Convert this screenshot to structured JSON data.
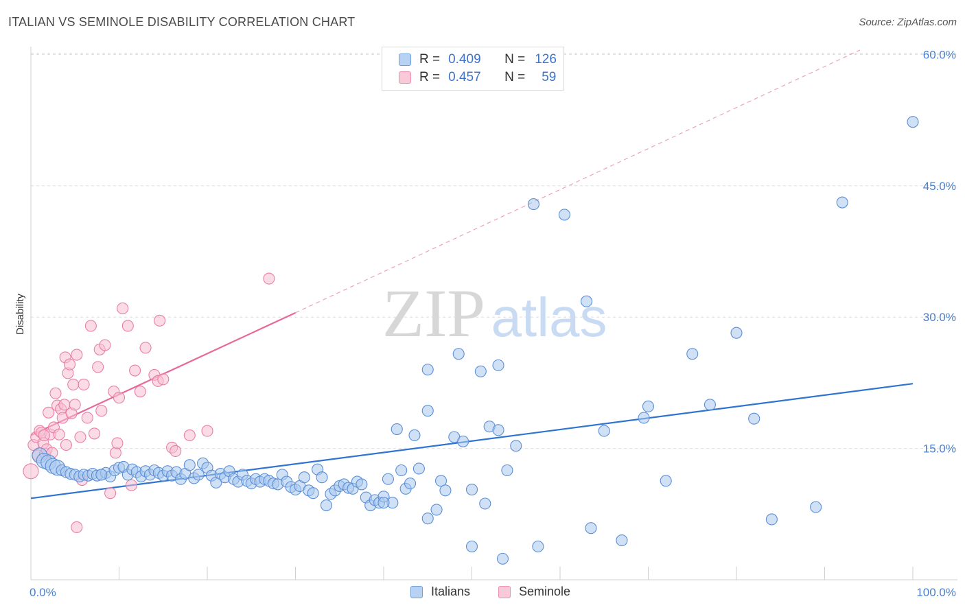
{
  "title": "ITALIAN VS SEMINOLE DISABILITY CORRELATION CHART",
  "source": "Source: ZipAtlas.com",
  "watermark": {
    "zip": "ZIP",
    "atlas": "atlas"
  },
  "legend_top": [
    {
      "r_label": "R =",
      "r_value": "0.409",
      "n_label": "N =",
      "n_value": "126"
    },
    {
      "r_label": "R =",
      "r_value": "0.457",
      "n_label": "N =",
      "n_value": "59"
    }
  ],
  "legend_bottom": [
    "Italians",
    "Seminole"
  ],
  "colors": {
    "italians_fill": "#a9c8ef",
    "italians_stroke": "#5b8fd6",
    "italians_line": "#2f74d0",
    "seminole_fill": "#f7bfd1",
    "seminole_stroke": "#e97ea5",
    "seminole_line": "#e8689a",
    "tick_label": "#4a7fc9",
    "grid": "#dddddd"
  },
  "chart_data": {
    "type": "scatter",
    "title": "ITALIAN VS SEMINOLE DISABILITY CORRELATION CHART",
    "xlabel": "",
    "ylabel": "Disability",
    "xlim": [
      0,
      100
    ],
    "ylim": [
      0,
      60
    ],
    "x_tick_labels": [
      "0.0%",
      "100.0%"
    ],
    "y_ticks": [
      15,
      30,
      45,
      60
    ],
    "y_tick_labels": [
      "15.0%",
      "30.0%",
      "45.0%",
      "60.0%"
    ],
    "grid": true,
    "legend_position": "bottom",
    "series": [
      {
        "name": "Italians",
        "r": 0.409,
        "n": 126,
        "trend": {
          "x": [
            0,
            100
          ],
          "y": [
            9.3,
            22.4
          ],
          "solid": true
        },
        "points": [
          [
            1,
            14.2
          ],
          [
            1.5,
            13.6
          ],
          [
            2,
            13.4
          ],
          [
            2.5,
            13.0
          ],
          [
            3,
            12.8
          ],
          [
            3.5,
            12.5
          ],
          [
            4,
            12.3
          ],
          [
            4.5,
            12.1
          ],
          [
            5,
            12.0
          ],
          [
            5.5,
            11.8
          ],
          [
            6,
            12.0
          ],
          [
            6.5,
            11.9
          ],
          [
            7,
            12.1
          ],
          [
            7.5,
            11.9
          ],
          [
            8,
            12.0
          ],
          [
            8.5,
            12.2
          ],
          [
            9,
            11.8
          ],
          [
            9.5,
            12.5
          ],
          [
            10,
            12.8
          ],
          [
            10.5,
            12.9
          ],
          [
            11,
            12.0
          ],
          [
            11.5,
            12.6
          ],
          [
            12,
            12.3
          ],
          [
            12.5,
            11.8
          ],
          [
            13,
            12.4
          ],
          [
            13.5,
            12.0
          ],
          [
            14,
            12.5
          ],
          [
            14.5,
            12.2
          ],
          [
            15,
            11.9
          ],
          [
            15.5,
            12.4
          ],
          [
            16,
            11.9
          ],
          [
            16.5,
            12.3
          ],
          [
            17,
            11.5
          ],
          [
            17.5,
            12.1
          ],
          [
            18,
            13.1
          ],
          [
            18.5,
            11.6
          ],
          [
            19,
            12.0
          ],
          [
            19.5,
            13.3
          ],
          [
            20,
            12.8
          ],
          [
            20.5,
            11.9
          ],
          [
            21,
            11.1
          ],
          [
            21.5,
            12.1
          ],
          [
            22,
            11.7
          ],
          [
            22.5,
            12.4
          ],
          [
            23,
            11.5
          ],
          [
            23.5,
            11.2
          ],
          [
            24,
            12.0
          ],
          [
            24.5,
            11.3
          ],
          [
            25,
            11.0
          ],
          [
            25.5,
            11.5
          ],
          [
            26,
            11.2
          ],
          [
            26.5,
            11.5
          ],
          [
            27,
            11.3
          ],
          [
            27.5,
            11.0
          ],
          [
            28,
            10.9
          ],
          [
            28.5,
            12.0
          ],
          [
            29,
            11.2
          ],
          [
            29.5,
            10.6
          ],
          [
            30,
            10.3
          ],
          [
            30.5,
            10.7
          ],
          [
            31,
            11.7
          ],
          [
            31.5,
            10.2
          ],
          [
            32,
            9.9
          ],
          [
            32.5,
            12.6
          ],
          [
            33,
            11.7
          ],
          [
            33.5,
            8.5
          ],
          [
            34,
            9.8
          ],
          [
            34.5,
            10.2
          ],
          [
            35,
            10.7
          ],
          [
            35.5,
            10.9
          ],
          [
            36,
            10.5
          ],
          [
            36.5,
            10.4
          ],
          [
            37,
            11.2
          ],
          [
            37.5,
            10.9
          ],
          [
            38,
            9.4
          ],
          [
            38.5,
            8.5
          ],
          [
            39,
            9.1
          ],
          [
            39.5,
            8.8
          ],
          [
            40,
            9.5
          ],
          [
            40.5,
            11.5
          ],
          [
            41,
            8.8
          ],
          [
            41.5,
            17.2
          ],
          [
            42,
            12.5
          ],
          [
            42.5,
            10.4
          ],
          [
            43,
            11.0
          ],
          [
            43.5,
            16.5
          ],
          [
            44,
            12.7
          ],
          [
            45,
            19.3
          ],
          [
            45,
            24.0
          ],
          [
            46,
            8.0
          ],
          [
            46.5,
            11.3
          ],
          [
            47,
            10.2
          ],
          [
            48,
            16.3
          ],
          [
            48.5,
            25.8
          ],
          [
            49,
            15.8
          ],
          [
            50,
            10.3
          ],
          [
            51,
            23.8
          ],
          [
            51.5,
            8.7
          ],
          [
            52,
            17.5
          ],
          [
            53,
            24.5
          ],
          [
            53,
            17.1
          ],
          [
            54,
            12.5
          ],
          [
            55,
            15.3
          ],
          [
            57,
            42.9
          ],
          [
            57.5,
            3.8
          ],
          [
            60.5,
            41.7
          ],
          [
            63,
            31.8
          ],
          [
            63.5,
            5.9
          ],
          [
            65,
            17.0
          ],
          [
            67,
            4.5
          ],
          [
            69.5,
            18.5
          ],
          [
            70,
            19.8
          ],
          [
            72,
            11.3
          ],
          [
            75,
            25.8
          ],
          [
            77,
            20.0
          ],
          [
            80,
            28.2
          ],
          [
            82,
            18.4
          ],
          [
            84,
            6.9
          ],
          [
            89,
            8.3
          ],
          [
            92,
            43.1
          ],
          [
            100,
            52.3
          ],
          [
            45,
            7.0
          ],
          [
            53.5,
            2.4
          ],
          [
            50,
            3.8
          ],
          [
            40,
            8.8
          ],
          [
            8,
            12.0
          ]
        ]
      },
      {
        "name": "Seminole",
        "r": 0.457,
        "n": 59,
        "trend": {
          "x": [
            0,
            30
          ],
          "y": [
            16.5,
            30.5
          ],
          "solid": true,
          "extension": {
            "x": [
              30,
              94
            ],
            "y": [
              30.5,
              60.5
            ],
            "dashed": true
          }
        },
        "points": [
          [
            0,
            12.4
          ],
          [
            0.3,
            15.4
          ],
          [
            0.6,
            16.3
          ],
          [
            0.8,
            14.2
          ],
          [
            1,
            17.0
          ],
          [
            1.2,
            16.8
          ],
          [
            1.4,
            15.6
          ],
          [
            1.6,
            14.4
          ],
          [
            1.8,
            14.9
          ],
          [
            2,
            19.1
          ],
          [
            2.2,
            16.6
          ],
          [
            2.4,
            14.5
          ],
          [
            2.6,
            17.4
          ],
          [
            2.8,
            21.3
          ],
          [
            3,
            19.9
          ],
          [
            3.2,
            16.6
          ],
          [
            3.4,
            19.5
          ],
          [
            3.6,
            18.5
          ],
          [
            3.8,
            20.0
          ],
          [
            3.9,
            25.4
          ],
          [
            4,
            15.4
          ],
          [
            4.2,
            23.6
          ],
          [
            4.4,
            24.6
          ],
          [
            4.6,
            19.0
          ],
          [
            4.8,
            22.3
          ],
          [
            5,
            20.0
          ],
          [
            5.2,
            25.7
          ],
          [
            5.6,
            16.3
          ],
          [
            5.8,
            11.4
          ],
          [
            6,
            22.3
          ],
          [
            6.4,
            18.5
          ],
          [
            6.8,
            29.0
          ],
          [
            7.2,
            16.7
          ],
          [
            7.6,
            24.3
          ],
          [
            7.8,
            26.3
          ],
          [
            8,
            19.3
          ],
          [
            8.4,
            26.8
          ],
          [
            9,
            9.9
          ],
          [
            9.4,
            21.5
          ],
          [
            9.6,
            14.5
          ],
          [
            9.8,
            15.6
          ],
          [
            10,
            20.8
          ],
          [
            10.4,
            31.0
          ],
          [
            11,
            29.0
          ],
          [
            11.4,
            10.8
          ],
          [
            11.8,
            23.9
          ],
          [
            12.4,
            21.5
          ],
          [
            13,
            26.5
          ],
          [
            14,
            23.4
          ],
          [
            14.4,
            22.7
          ],
          [
            14.6,
            29.6
          ],
          [
            15,
            22.9
          ],
          [
            16,
            15.1
          ],
          [
            16.4,
            14.7
          ],
          [
            18,
            16.5
          ],
          [
            20,
            17.0
          ],
          [
            27,
            34.4
          ],
          [
            5.2,
            6.0
          ],
          [
            1.5,
            16.5
          ]
        ]
      }
    ]
  }
}
